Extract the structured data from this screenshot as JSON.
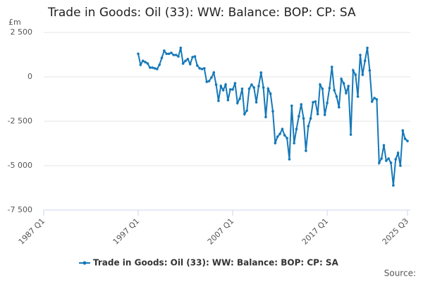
{
  "chart_data": {
    "type": "line",
    "title": "Trade in Goods: Oil (33): WW: Balance: BOP: CP: SA",
    "y_label": "£m",
    "source": "Source:",
    "categories": [
      "1987 Q1",
      null,
      null,
      null,
      null,
      null,
      null,
      null,
      null,
      null,
      null,
      null,
      null,
      null,
      null,
      null,
      null,
      null,
      null,
      null,
      null,
      null,
      null,
      null,
      null,
      null,
      null,
      null,
      null,
      null,
      null,
      null,
      null,
      null,
      null,
      null,
      null,
      null,
      null,
      null,
      "1997 Q1",
      null,
      null,
      null,
      null,
      null,
      null,
      null,
      null,
      null,
      null,
      null,
      null,
      null,
      null,
      null,
      null,
      null,
      null,
      null,
      null,
      null,
      null,
      null,
      null,
      null,
      null,
      null,
      null,
      null,
      null,
      null,
      null,
      null,
      null,
      null,
      null,
      null,
      null,
      null,
      "2007 Q1",
      null,
      null,
      null,
      null,
      null,
      null,
      null,
      null,
      null,
      null,
      null,
      null,
      null,
      null,
      null,
      null,
      null,
      null,
      null,
      null,
      null,
      null,
      null,
      null,
      null,
      null,
      null,
      null,
      null,
      null,
      null,
      null,
      null,
      null,
      null,
      null,
      null,
      null,
      null,
      "2017 Q1",
      null,
      null,
      null,
      null,
      null,
      null,
      null,
      null,
      null,
      null,
      null,
      null,
      null,
      null,
      null,
      null,
      null,
      null,
      null,
      null,
      null,
      null,
      null,
      null,
      null,
      null,
      null,
      null,
      null,
      null,
      null,
      null,
      null,
      "2025 Q3"
    ],
    "series": [
      {
        "name": "Trade in Goods: Oil (33): WW: Balance: BOP: CP: SA",
        "color": "#1478b8",
        "values": [
          null,
          null,
          null,
          null,
          null,
          null,
          null,
          null,
          null,
          null,
          null,
          null,
          null,
          null,
          null,
          null,
          null,
          null,
          null,
          null,
          null,
          null,
          null,
          null,
          null,
          null,
          null,
          null,
          null,
          null,
          null,
          null,
          null,
          null,
          null,
          null,
          null,
          null,
          null,
          null,
          1300,
          680,
          900,
          830,
          750,
          520,
          520,
          480,
          440,
          680,
          1070,
          1470,
          1300,
          1300,
          1350,
          1230,
          1230,
          1150,
          1630,
          750,
          900,
          1000,
          720,
          1110,
          1150,
          640,
          480,
          440,
          480,
          -280,
          -240,
          -40,
          240,
          -440,
          -1350,
          -520,
          -750,
          -440,
          -1310,
          -710,
          -710,
          -360,
          -1470,
          -1230,
          -670,
          -2100,
          -1900,
          -670,
          -440,
          -600,
          -1430,
          -520,
          240,
          -600,
          -2260,
          -670,
          -950,
          -1940,
          -3730,
          -3370,
          -3210,
          -2940,
          -3290,
          -3450,
          -4640,
          -1630,
          -3730,
          -2940,
          -2220,
          -1550,
          -2340,
          -4160,
          -2780,
          -2340,
          -1430,
          -1390,
          -2100,
          -440,
          -670,
          -2140,
          -1470,
          -630,
          560,
          -750,
          -1110,
          -1710,
          -120,
          -360,
          -910,
          -520,
          -3250,
          360,
          120,
          -1110,
          1230,
          120,
          900,
          1630,
          360,
          -1390,
          -1190,
          -1270,
          -4840,
          -4600,
          -3850,
          -4720,
          -4600,
          -4840,
          -6110,
          -4640,
          -4290,
          -5000,
          -3020,
          -3490,
          -3610
        ]
      }
    ],
    "ylim": [
      -7500,
      2500
    ],
    "yticks": [
      {
        "value": -7500,
        "label": "-7 500"
      },
      {
        "value": -5000,
        "label": "-5 000"
      },
      {
        "value": -2500,
        "label": "-2 500"
      },
      0,
      {
        "value": 2500,
        "label": "2 500"
      }
    ],
    "grid": true,
    "legend": "bottom"
  }
}
